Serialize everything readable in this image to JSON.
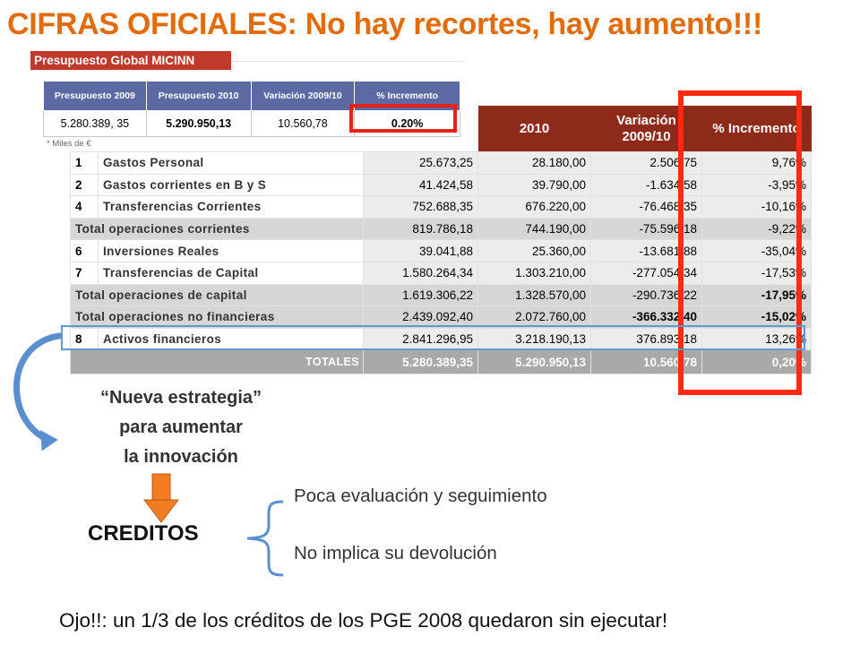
{
  "title": "CIFRAS OFICIALES: No hay recortes, hay aumento!!!",
  "sub_banner": "Presupuesto Global MICINN",
  "small_table": {
    "headers": [
      "Presupuesto 2009",
      "Presupuesto 2010",
      "Variación 2009/10",
      "% Incremento"
    ],
    "values": [
      "5.280.389, 35",
      "5.290.950,13",
      "10.560,78",
      "0.20%"
    ]
  },
  "units_note": "* Miles de €",
  "big_table": {
    "headers": [
      "2010",
      "Variación 2009/10",
      "% Incremento"
    ],
    "rows": [
      {
        "idx": "1",
        "label": "Gastos Personal",
        "v2009": "25.673,25",
        "v2010": "28.180,00",
        "var": "2.506,75",
        "pct": "9,76%"
      },
      {
        "idx": "2",
        "label": "Gastos corrientes en   B y S",
        "v2009": "41.424,58",
        "v2010": "39.790,00",
        "var": "-1.634,58",
        "pct": "-3,95%"
      },
      {
        "idx": "4",
        "label": "Transferencias Corrientes",
        "v2009": "752.688,35",
        "v2010": "676.220,00",
        "var": "-76.468,35",
        "pct": "-10,16%"
      },
      {
        "idx": "",
        "label": "Total operaciones corrientes",
        "v2009": "819.786,18",
        "v2010": "744.190,00",
        "var": "-75.596,18",
        "pct": "-9,22%"
      },
      {
        "idx": "6",
        "label": "Inversiones Reales",
        "v2009": "39.041,88",
        "v2010": "25.360,00",
        "var": "-13.681,88",
        "pct": "-35,04%"
      },
      {
        "idx": "7",
        "label": "Transferencias  de Capital",
        "v2009": "1.580.264,34",
        "v2010": "1.303.210,00",
        "var": "-277.054,34",
        "pct": "-17,53%"
      },
      {
        "idx": "",
        "label": "Total operaciones de capital",
        "v2009": "1.619.306,22",
        "v2010": "1.328.570,00",
        "var": "-290.736,22",
        "pct": "-17,95%"
      },
      {
        "idx": "",
        "label": "Total operaciones no financieras",
        "v2009": "2.439.092,40",
        "v2010": "2.072.760,00",
        "var": "-366.332,40",
        "pct": "-15,02%"
      },
      {
        "idx": "8",
        "label": "Activos  financieros",
        "v2009": "2.841.296,95",
        "v2010": "3.218.190,13",
        "var": "376.893,18",
        "pct": "13,26%"
      }
    ],
    "totals": {
      "label": "TOTALES",
      "v2009": "5.280.389,35",
      "v2010": "5.290.950,13",
      "var": "10.560,78",
      "pct": "0,20%"
    }
  },
  "strategy": {
    "line1": "“Nueva estrategia”",
    "line2": "para aumentar",
    "line3": "la innovación"
  },
  "creditos": "CREDITOS",
  "brace_items": [
    "Poca evaluación y seguimiento",
    "No implica su devolución"
  ],
  "footer": "Ojo!!: un 1/3 de los créditos de los PGE 2008 quedaron sin ejecutar!",
  "colors": {
    "title": "#e36c0a",
    "highlight_red": "#ff2a14",
    "highlight_blue": "#5b9bd5",
    "header_dark_red": "#8e2a1a",
    "header_blue": "#5b6aa3"
  }
}
